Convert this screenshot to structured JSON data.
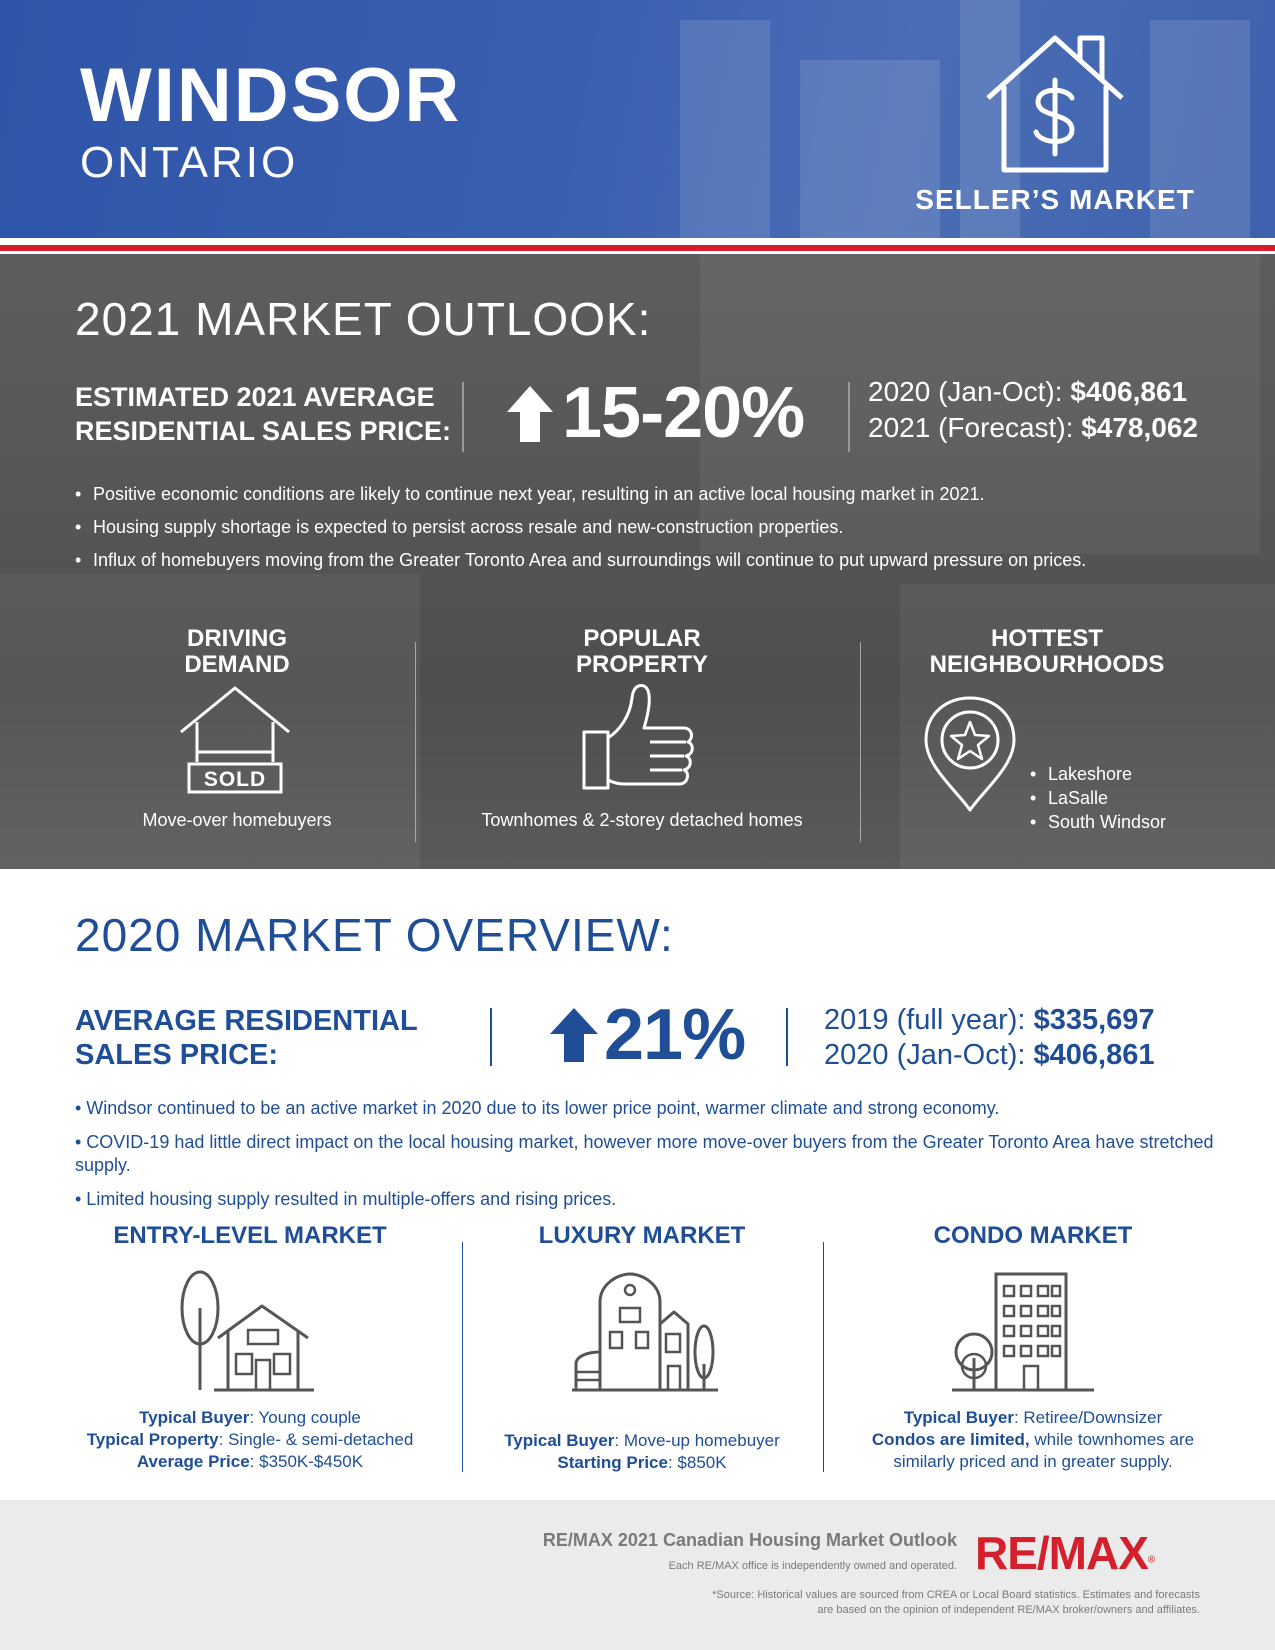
{
  "header": {
    "city": "WINDSOR",
    "province": "ONTARIO",
    "market_type": "SELLER’S MARKET"
  },
  "outlook": {
    "title": "2021 MARKET OUTLOOK:",
    "price_label_line1": "ESTIMATED 2021 AVERAGE",
    "price_label_line2": "RESIDENTIAL SALES PRICE:",
    "change": "15-20%",
    "price_2020_label": "2020 (Jan-Oct):",
    "price_2020_value": "$406,861",
    "price_2021_label": "2021 (Forecast):",
    "price_2021_value": "$478,062",
    "bullets": [
      "Positive economic conditions are likely to continue next year, resulting in an active local housing market in 2021.",
      "Housing supply shortage is expected to persist across resale and new-construction properties.",
      "Influx of homebuyers moving from the Greater Toronto Area and surroundings will continue to put upward pressure on prices."
    ],
    "driving_demand": {
      "heading_line1": "DRIVING",
      "heading_line2": "DEMAND",
      "sign_text": "SOLD",
      "caption": "Move-over homebuyers"
    },
    "popular_property": {
      "heading_line1": "POPULAR",
      "heading_line2": "PROPERTY",
      "caption": "Townhomes & 2-storey detached homes"
    },
    "hottest_neighbourhoods": {
      "heading_line1": "HOTTEST",
      "heading_line2": "NEIGHBOURHOODS",
      "items": [
        "Lakeshore",
        "LaSalle",
        "South Windsor"
      ]
    }
  },
  "overview": {
    "title": "2020 MARKET OVERVIEW:",
    "price_label_line1": "AVERAGE RESIDENTIAL",
    "price_label_line2": "SALES PRICE:",
    "change": "21%",
    "price_2019_label": "2019 (full year):",
    "price_2019_value": "$335,697",
    "price_2020_label": "2020 (Jan-Oct):",
    "price_2020_value": "$406,861",
    "bullets": [
      "• Windsor continued to be an active market in 2020 due to its lower price point, warmer climate and strong economy.",
      "• COVID-19 had little direct impact on the local housing market, however more move-over buyers from the Greater Toronto Area have stretched supply.",
      "• Limited housing supply resulted in multiple-offers and rising prices."
    ],
    "entry_level": {
      "heading": "ENTRY-LEVEL MARKET",
      "buyer_label": "Typical Buyer",
      "buyer_value": ": Young couple",
      "property_label": "Typical Property",
      "property_value": ": Single- & semi-detached",
      "price_label": "Average Price",
      "price_value": ": $350K-$450K"
    },
    "luxury": {
      "heading": "LUXURY MARKET",
      "buyer_label": "Typical Buyer",
      "buyer_value": ": Move-up homebuyer",
      "price_label": "Starting Price",
      "price_value": ": $850K"
    },
    "condo": {
      "heading": "CONDO MARKET",
      "buyer_label": "Typical Buyer",
      "buyer_value": ": Retiree/Downsizer",
      "note_bold": "Condos are limited,",
      "note_rest_line1": " while townhomes are",
      "note_line2": "similarly priced and in greater supply."
    }
  },
  "footer": {
    "title": "RE/MAX 2021 Canadian Housing Market Outlook",
    "subtitle": "Each RE/MAX office is independently owned and operated.",
    "logo_text": "RE/MAX",
    "logo_mark": "®",
    "source_line1": "*Source: Historical values are sourced from CREA or Local Board statistics. Estimates and forecasts",
    "source_line2": "are based on the opinion of independent RE/MAX broker/owners and affiliates."
  },
  "colors": {
    "header_blue": "#3a5fb0",
    "overview_blue": "#1f4e96",
    "remax_red": "#d4202c",
    "outlook_gray": "#565658"
  },
  "icons": {
    "header": "house-dollar-icon",
    "driving_demand": "house-sold-sign-icon",
    "popular_property": "thumbs-up-icon",
    "neighbourhoods": "map-pin-star-icon",
    "entry_level": "house-with-tree-icon",
    "luxury": "luxury-house-icon",
    "condo": "condo-building-icon",
    "outlook_arrow": "up-arrow-icon",
    "overview_arrow": "up-arrow-icon"
  }
}
